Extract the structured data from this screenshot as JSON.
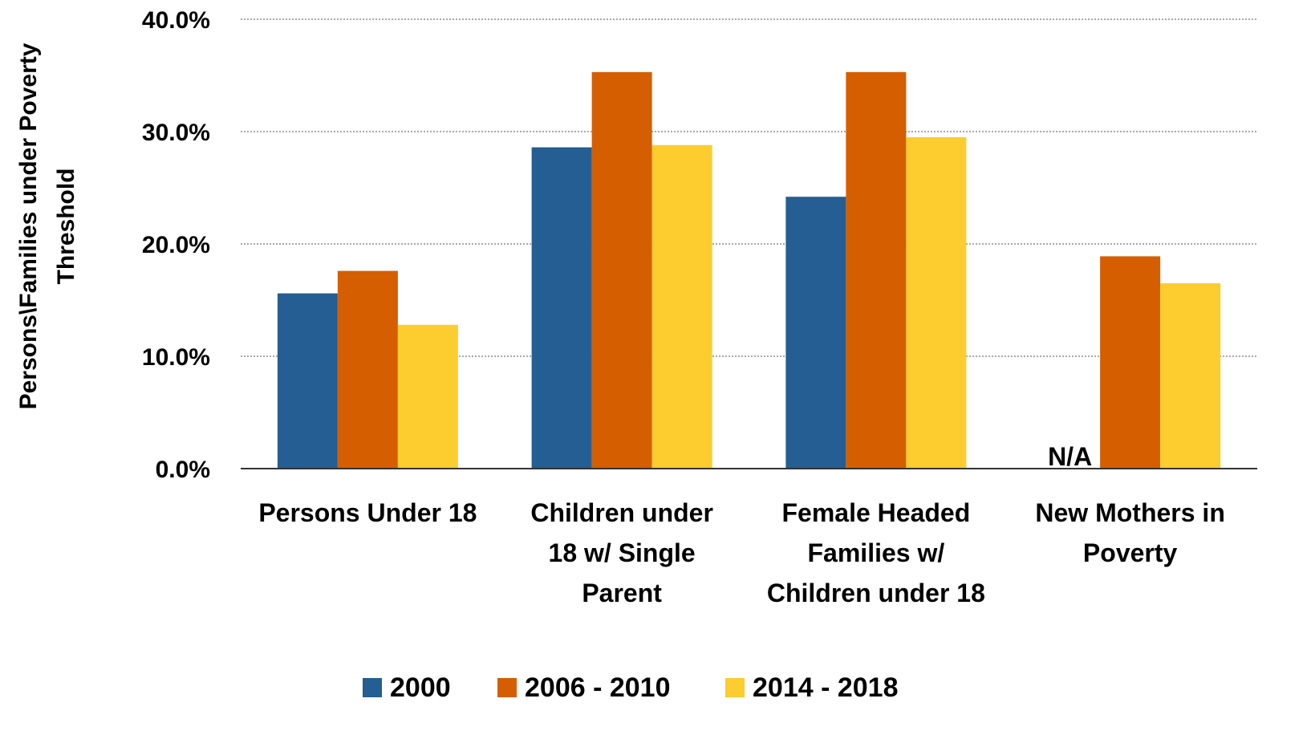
{
  "chart_data": {
    "type": "bar",
    "ylabel_lines": [
      "Persons\\Families under Poverty",
      "Threshold"
    ],
    "categories": [
      [
        "Persons Under 18"
      ],
      [
        "Children under",
        "18 w/ Single",
        "Parent"
      ],
      [
        "Female Headed",
        "Families w/",
        "Children under 18"
      ],
      [
        "New Mothers in",
        "Poverty"
      ]
    ],
    "series": [
      {
        "name": "2000",
        "color": "#245E92",
        "values": [
          15.6,
          28.6,
          24.2,
          null
        ]
      },
      {
        "name": "2006 - 2010",
        "color": "#D55E00",
        "values": [
          17.6,
          35.3,
          35.3,
          18.9
        ]
      },
      {
        "name": "2014 - 2018",
        "color": "#FDCC2F",
        "values": [
          12.8,
          28.8,
          29.5,
          16.5
        ]
      }
    ],
    "ylim": [
      0,
      40
    ],
    "yticks": [
      "0.0%",
      "10.0%",
      "20.0%",
      "30.0%",
      "40.0%"
    ],
    "grid": true,
    "legend_position": "bottom",
    "annotations": [
      {
        "text": "N/A",
        "category_index": 3,
        "series_index": 0
      }
    ]
  }
}
